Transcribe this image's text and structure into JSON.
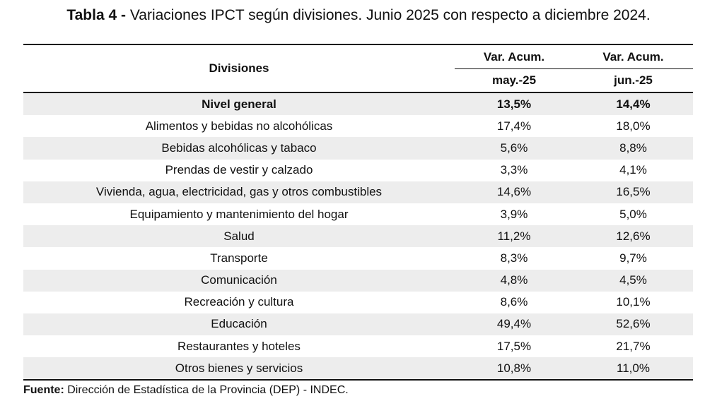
{
  "title": {
    "prefix": "Tabla 4 -",
    "text": "Variaciones IPCT según divisiones. Junio 2025 con respecto a diciembre 2024."
  },
  "table": {
    "header": {
      "divisions": "Divisiones",
      "col1_top": "Var. Acum.",
      "col1_bottom": "may.-25",
      "col2_top": "Var. Acum.",
      "col2_bottom": "jun.-25"
    },
    "rows": [
      {
        "division": "Nivel general",
        "may": "13,5%",
        "jun": "14,4%"
      },
      {
        "division": "Alimentos y bebidas no alcohólicas",
        "may": "17,4%",
        "jun": "18,0%"
      },
      {
        "division": "Bebidas alcohólicas y tabaco",
        "may": "5,6%",
        "jun": "8,8%"
      },
      {
        "division": "Prendas de vestir y calzado",
        "may": "3,3%",
        "jun": "4,1%"
      },
      {
        "division": "Vivienda, agua, electricidad, gas y otros combustibles",
        "may": "14,6%",
        "jun": "16,5%"
      },
      {
        "division": "Equipamiento y mantenimiento del hogar",
        "may": "3,9%",
        "jun": "5,0%"
      },
      {
        "division": "Salud",
        "may": "11,2%",
        "jun": "12,6%"
      },
      {
        "division": "Transporte",
        "may": "8,3%",
        "jun": "9,7%"
      },
      {
        "division": "Comunicación",
        "may": "4,8%",
        "jun": "4,5%"
      },
      {
        "division": "Recreación y cultura",
        "may": "8,6%",
        "jun": "10,1%"
      },
      {
        "division": "Educación",
        "may": "49,4%",
        "jun": "52,6%"
      },
      {
        "division": "Restaurantes y hoteles",
        "may": "17,5%",
        "jun": "21,7%"
      },
      {
        "division": "Otros bienes y servicios",
        "may": "10,8%",
        "jun": "11,0%"
      }
    ]
  },
  "footer": {
    "label": "Fuente:",
    "text": "Dirección de Estadística de la Provincia (DEP) - INDEC."
  }
}
